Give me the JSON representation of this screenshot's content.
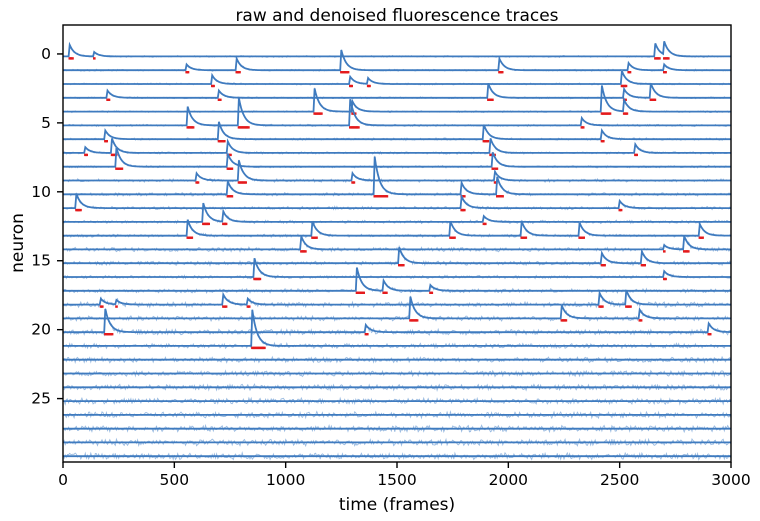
{
  "chart_data": {
    "type": "line",
    "title": "raw and denoised fluorescence traces",
    "xlabel": "time (frames)",
    "ylabel": "neuron",
    "xlim": [
      0,
      3000
    ],
    "ylim": [
      29.6,
      -2.1
    ],
    "x_ticks": [
      0,
      500,
      1000,
      1500,
      2000,
      2500,
      3000
    ],
    "y_ticks": [
      0,
      5,
      10,
      15,
      20,
      25
    ],
    "n_neurons": 30,
    "grid": false,
    "colors": {
      "raw": "#8fb4de",
      "denoised": "#3f7bbf",
      "spikes": "#e41a1c"
    },
    "series": [
      {
        "neuron": 0,
        "transients": [
          [
            30,
            0.8
          ],
          [
            140,
            0.3
          ],
          [
            2660,
            0.9
          ],
          [
            2700,
            0.9
          ]
        ],
        "noise": 0.05
      },
      {
        "neuron": 1,
        "transients": [
          [
            555,
            0.4
          ],
          [
            780,
            0.8
          ],
          [
            1250,
            1.4
          ],
          [
            1960,
            0.8
          ],
          [
            2540,
            0.5
          ],
          [
            2700,
            0.4
          ]
        ],
        "noise": 0.05
      },
      {
        "neuron": 2,
        "transients": [
          [
            670,
            0.6
          ],
          [
            1290,
            0.5
          ],
          [
            1370,
            0.4
          ],
          [
            2510,
            0.9
          ]
        ],
        "noise": 0.05
      },
      {
        "neuron": 3,
        "transients": [
          [
            200,
            0.5
          ],
          [
            700,
            0.5
          ],
          [
            1910,
            1.0
          ],
          [
            2520,
            0.6
          ],
          [
            2640,
            1.0
          ]
        ],
        "noise": 0.05
      },
      {
        "neuron": 4,
        "transients": [
          [
            1130,
            1.6
          ],
          [
            1300,
            0.7
          ],
          [
            2420,
            1.8
          ],
          [
            2520,
            0.8
          ]
        ],
        "noise": 0.05
      },
      {
        "neuron": 5,
        "transients": [
          [
            560,
            1.3
          ],
          [
            790,
            1.9
          ],
          [
            1290,
            1.8
          ],
          [
            2330,
            0.5
          ]
        ],
        "noise": 0.06
      },
      {
        "neuron": 6,
        "transients": [
          [
            190,
            0.6
          ],
          [
            700,
            1.2
          ],
          [
            1890,
            1.0
          ],
          [
            2420,
            0.6
          ]
        ],
        "noise": 0.06
      },
      {
        "neuron": 7,
        "transients": [
          [
            100,
            0.4
          ],
          [
            220,
            1.0
          ],
          [
            740,
            0.8
          ],
          [
            1920,
            1.0
          ],
          [
            2570,
            0.6
          ]
        ],
        "noise": 0.06
      },
      {
        "neuron": 8,
        "transients": [
          [
            240,
            1.3
          ],
          [
            740,
            0.9
          ],
          [
            1930,
            1.0
          ]
        ],
        "noise": 0.06
      },
      {
        "neuron": 9,
        "transients": [
          [
            600,
            0.5
          ],
          [
            790,
            1.4
          ],
          [
            1300,
            0.5
          ],
          [
            1940,
            0.6
          ]
        ],
        "noise": 0.08
      },
      {
        "neuron": 10,
        "transients": [
          [
            740,
            0.9
          ],
          [
            1400,
            2.6
          ],
          [
            1790,
            0.8
          ],
          [
            1950,
            1.2
          ]
        ],
        "noise": 0.08
      },
      {
        "neuron": 11,
        "transients": [
          [
            60,
            1.0
          ],
          [
            1790,
            0.8
          ],
          [
            2500,
            0.5
          ]
        ],
        "noise": 0.08
      },
      {
        "neuron": 12,
        "transients": [
          [
            630,
            1.3
          ],
          [
            720,
            0.7
          ],
          [
            1890,
            0.4
          ]
        ],
        "noise": 0.08
      },
      {
        "neuron": 13,
        "transients": [
          [
            560,
            1.1
          ],
          [
            1120,
            1.0
          ],
          [
            1740,
            1.0
          ],
          [
            2060,
            1.0
          ],
          [
            2320,
            0.9
          ],
          [
            2860,
            0.8
          ]
        ],
        "noise": 0.08
      },
      {
        "neuron": 14,
        "transients": [
          [
            1070,
            0.9
          ],
          [
            2700,
            0.3
          ],
          [
            2790,
            0.9
          ]
        ],
        "noise": 0.11
      },
      {
        "neuron": 15,
        "transients": [
          [
            1510,
            1.1
          ],
          [
            2420,
            0.7
          ],
          [
            2600,
            0.8
          ]
        ],
        "noise": 0.1
      },
      {
        "neuron": 16,
        "transients": [
          [
            860,
            1.3
          ],
          [
            2700,
            0.4
          ]
        ],
        "noise": 0.08
      },
      {
        "neuron": 17,
        "transients": [
          [
            1320,
            1.6
          ],
          [
            1440,
            0.7
          ],
          [
            1650,
            0.4
          ]
        ],
        "noise": 0.1
      },
      {
        "neuron": 18,
        "transients": [
          [
            170,
            0.4
          ],
          [
            240,
            0.3
          ],
          [
            720,
            0.7
          ],
          [
            830,
            0.4
          ],
          [
            2410,
            0.8
          ],
          [
            2530,
            1.0
          ]
        ],
        "noise": 0.13
      },
      {
        "neuron": 19,
        "transients": [
          [
            1560,
            1.5
          ],
          [
            2240,
            0.9
          ],
          [
            2590,
            0.6
          ]
        ],
        "noise": 0.12
      },
      {
        "neuron": 20,
        "transients": [
          [
            190,
            1.6
          ],
          [
            1360,
            0.5
          ],
          [
            2900,
            0.6
          ]
        ],
        "noise": 0.14
      },
      {
        "neuron": 21,
        "transients": [
          [
            850,
            2.5
          ]
        ],
        "noise": 0.12
      }
    ]
  }
}
